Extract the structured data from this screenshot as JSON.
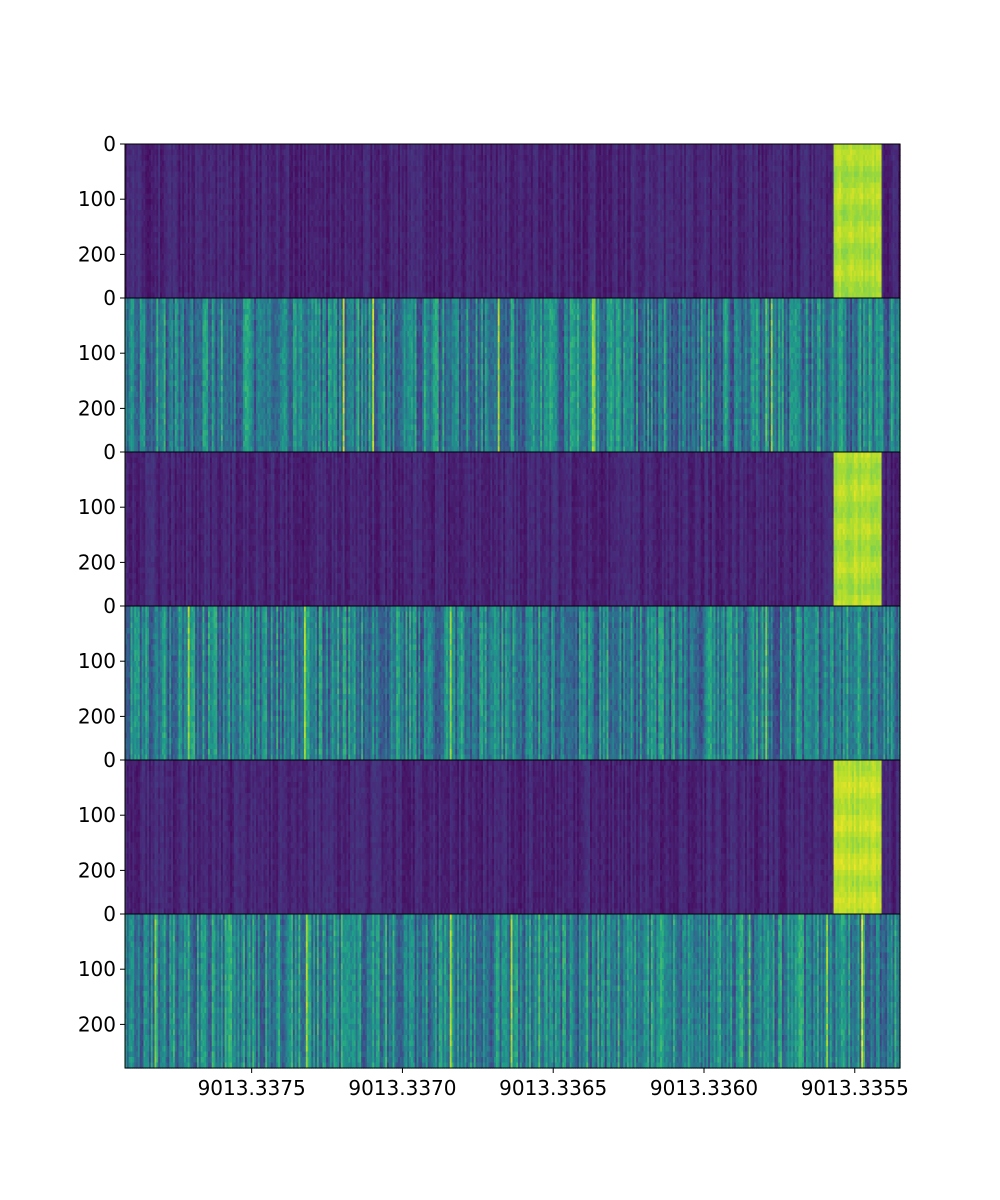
{
  "chart_data": {
    "type": "heatmap",
    "colormap": "viridis",
    "grid": false,
    "legend": "none",
    "xlabel": "",
    "ylabel": "",
    "x_ticks": [
      "9013.3375",
      "9013.3370",
      "9013.3365",
      "9013.3360",
      "9013.3355"
    ],
    "x_tick_values": [
      9013.3375,
      9013.337,
      9013.3365,
      9013.336,
      9013.3355
    ],
    "xlim": [
      9013.33792,
      9013.33535
    ],
    "y_ticks": [
      0,
      100,
      200
    ],
    "ylim": [
      279,
      0
    ],
    "panels": [
      {
        "pattern": "signal",
        "signal_band": [
          9013.33557,
          9013.33541
        ],
        "background_level": 0.1,
        "signal_level": 0.88
      },
      {
        "pattern": "noise",
        "background_level": 0.42
      },
      {
        "pattern": "signal",
        "signal_band": [
          9013.33557,
          9013.33541
        ],
        "background_level": 0.1,
        "signal_level": 0.88
      },
      {
        "pattern": "noise",
        "background_level": 0.42
      },
      {
        "pattern": "signal",
        "signal_band": [
          9013.33557,
          9013.33541
        ],
        "background_level": 0.1,
        "signal_level": 0.9
      },
      {
        "pattern": "noise",
        "background_level": 0.45
      }
    ]
  }
}
